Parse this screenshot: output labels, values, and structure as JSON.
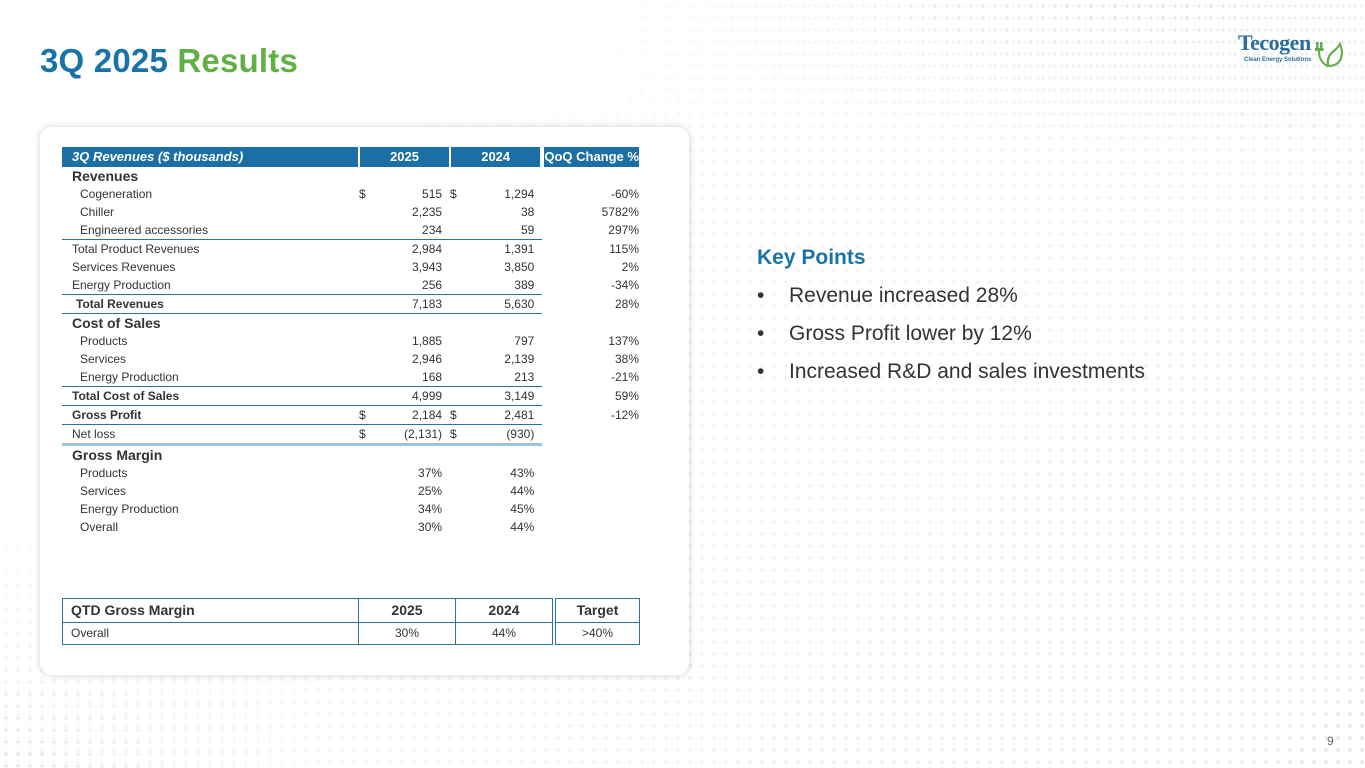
{
  "title": {
    "part1": "3Q 2025",
    "part2": "Results"
  },
  "logo": {
    "name": "Tecogen",
    "tagline": "Clean Energy Solutions",
    "color": "#2a6d9c"
  },
  "revenue_table": {
    "header": {
      "label": "3Q Revenues ($ thousands)",
      "col2025": "2025",
      "col2024": "2024",
      "change": "QoQ Change %"
    },
    "sections": {
      "revenues": "Revenues",
      "cost_of_sales": "Cost of Sales",
      "gross_margin": "Gross Margin"
    },
    "rows": {
      "cogeneration": {
        "label": "Cogeneration",
        "cur25": "$",
        "v2025": "515",
        "cur24": "$",
        "v2024": "1,294",
        "change": "-60%"
      },
      "chiller": {
        "label": "Chiller",
        "v2025": "2,235",
        "v2024": "38",
        "change": "5782%"
      },
      "engineered": {
        "label": "Engineered accessories",
        "v2025": "234",
        "v2024": "59",
        "change": "297%"
      },
      "total_product": {
        "label": "Total Product Revenues",
        "v2025": "2,984",
        "v2024": "1,391",
        "change": "115%"
      },
      "services_rev": {
        "label": "Services Revenues",
        "v2025": "3,943",
        "v2024": "3,850",
        "change": "2%"
      },
      "energy_rev": {
        "label": "Energy Production",
        "v2025": "256",
        "v2024": "389",
        "change": "-34%"
      },
      "total_revenues": {
        "label": "Total Revenues",
        "v2025": "7,183",
        "v2024": "5,630",
        "change": "28%"
      },
      "products_cos": {
        "label": "Products",
        "v2025": "1,885",
        "v2024": "797",
        "change": "137%"
      },
      "services_cos": {
        "label": "Services",
        "v2025": "2,946",
        "v2024": "2,139",
        "change": "38%"
      },
      "energy_cos": {
        "label": "Energy Production",
        "v2025": "168",
        "v2024": "213",
        "change": "-21%"
      },
      "total_cos": {
        "label": "Total Cost of Sales",
        "v2025": "4,999",
        "v2024": "3,149",
        "change": "59%"
      },
      "gross_profit": {
        "label": "Gross Profit",
        "cur25": "$",
        "v2025": "2,184",
        "cur24": "$",
        "v2024": "2,481",
        "change": "-12%"
      },
      "net_loss": {
        "label": "Net loss",
        "cur25": "$",
        "v2025": "(2,131)",
        "cur24": "$",
        "v2024": "(930)"
      },
      "gm_products": {
        "label": "Products",
        "v2025": "37%",
        "v2024": "43%"
      },
      "gm_services": {
        "label": "Services",
        "v2025": "25%",
        "v2024": "44%"
      },
      "gm_energy": {
        "label": "Energy Production",
        "v2025": "34%",
        "v2024": "45%"
      },
      "gm_overall": {
        "label": "Overall",
        "v2025": "30%",
        "v2024": "44%"
      }
    }
  },
  "qtd_table": {
    "header": {
      "label": "QTD Gross Margin",
      "col2025": "2025",
      "col2024": "2024",
      "target": "Target"
    },
    "row": {
      "label": "Overall",
      "v2025": "30%",
      "v2024": "44%",
      "target": ">40%"
    }
  },
  "key_points": {
    "title": "Key Points",
    "bullet": "•",
    "items": [
      "Revenue increased 28%",
      "Gross Profit lower by 12%",
      "Increased R&D and sales investments"
    ]
  },
  "page_number": "9",
  "colors": {
    "primary_blue": "#1a73a8",
    "green": "#62b045",
    "table_header": "#1c6fa4"
  }
}
